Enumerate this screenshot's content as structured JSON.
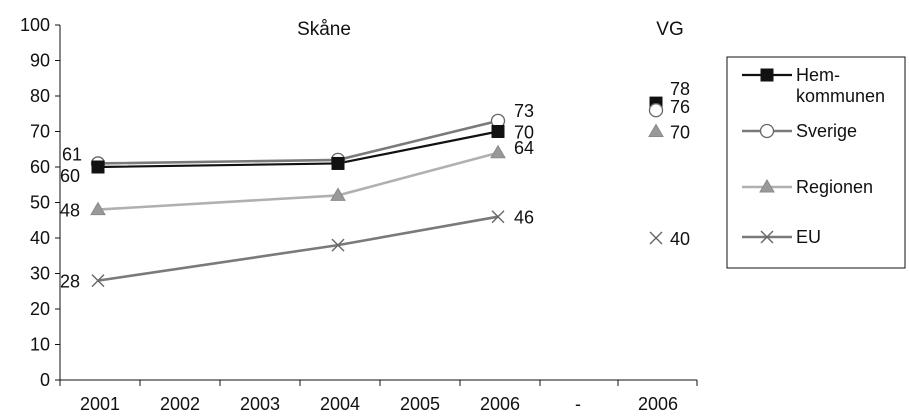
{
  "chart_data": {
    "type": "line",
    "title": "Skåne",
    "side_title": "VG",
    "ylim": [
      0,
      100
    ],
    "y_ticks": [
      "0",
      "10",
      "20",
      "30",
      "40",
      "50",
      "60",
      "70",
      "80",
      "90",
      "100"
    ],
    "x_tick_labels": [
      "2001",
      "2002",
      "2003",
      "2004",
      "2005",
      "2006",
      "-",
      "2006"
    ],
    "grid": false,
    "legend_position": "right",
    "categories": [
      "2001",
      "2004",
      "2006"
    ],
    "series": [
      {
        "name": "Hem-\nkommunen",
        "legend_lines": [
          "Hem-",
          "kommunen"
        ],
        "marker": "square",
        "color": "#111111",
        "marker_fill": "#111111",
        "values": [
          60,
          61,
          70
        ],
        "labels": [
          "60",
          null,
          "70"
        ],
        "vg_value": 78,
        "vg_label": "78"
      },
      {
        "name": "Sverige",
        "legend_lines": [
          "Sverige"
        ],
        "marker": "circle",
        "color": "#7a7a7a",
        "marker_fill": "#ffffff",
        "values": [
          61,
          62,
          73
        ],
        "labels": [
          "61",
          null,
          "73"
        ],
        "vg_value": 76,
        "vg_label": "76"
      },
      {
        "name": "Regionen",
        "legend_lines": [
          "Regionen"
        ],
        "marker": "triangle",
        "color": "#b0b0b0",
        "marker_fill": "#999999",
        "values": [
          48,
          52,
          64
        ],
        "labels": [
          "48",
          null,
          "64"
        ],
        "vg_value": 70,
        "vg_label": "70"
      },
      {
        "name": "EU",
        "legend_lines": [
          "EU"
        ],
        "marker": "x",
        "color": "#7a7a7a",
        "marker_fill": "none",
        "values": [
          28,
          38,
          46
        ],
        "labels": [
          "28",
          null,
          "46"
        ],
        "vg_value": 40,
        "vg_label": "40"
      }
    ]
  }
}
